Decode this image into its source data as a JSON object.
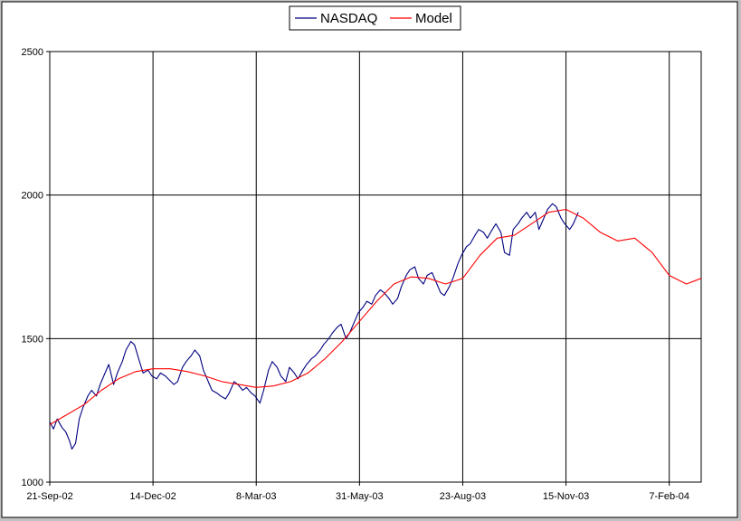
{
  "chart_data": {
    "type": "line",
    "title": "",
    "xlabel": "",
    "ylabel": "",
    "ylim": [
      1000,
      2500
    ],
    "yticks": [
      "1000",
      "1500",
      "2000",
      "2500"
    ],
    "xlim": [
      "2002-09-21",
      "2004-03-04"
    ],
    "xticks": [
      {
        "date": "2002-09-21",
        "label": "21-Sep-02"
      },
      {
        "date": "2002-12-14",
        "label": "14-Dec-02"
      },
      {
        "date": "2003-03-08",
        "label": "8-Mar-03"
      },
      {
        "date": "2003-05-31",
        "label": "31-May-03"
      },
      {
        "date": "2003-08-23",
        "label": "23-Aug-03"
      },
      {
        "date": "2003-11-15",
        "label": "15-Nov-03"
      },
      {
        "date": "2004-02-07",
        "label": "7-Feb-04"
      }
    ],
    "grid": true,
    "legend": "top-center",
    "series": [
      {
        "name": "NASDAQ",
        "color": "#000080",
        "points": [
          [
            "2002-09-21",
            1210
          ],
          [
            "2002-09-24",
            1185
          ],
          [
            "2002-09-27",
            1220
          ],
          [
            "2002-10-01",
            1190
          ],
          [
            "2002-10-04",
            1175
          ],
          [
            "2002-10-07",
            1145
          ],
          [
            "2002-10-09",
            1115
          ],
          [
            "2002-10-12",
            1135
          ],
          [
            "2002-10-15",
            1220
          ],
          [
            "2002-10-18",
            1260
          ],
          [
            "2002-10-22",
            1300
          ],
          [
            "2002-10-25",
            1320
          ],
          [
            "2002-10-29",
            1300
          ],
          [
            "2002-11-01",
            1340
          ],
          [
            "2002-11-05",
            1380
          ],
          [
            "2002-11-08",
            1410
          ],
          [
            "2002-11-12",
            1340
          ],
          [
            "2002-11-15",
            1380
          ],
          [
            "2002-11-19",
            1420
          ],
          [
            "2002-11-22",
            1460
          ],
          [
            "2002-11-26",
            1490
          ],
          [
            "2002-11-29",
            1478
          ],
          [
            "2002-12-03",
            1420
          ],
          [
            "2002-12-06",
            1380
          ],
          [
            "2002-12-10",
            1390
          ],
          [
            "2002-12-13",
            1370
          ],
          [
            "2002-12-17",
            1360
          ],
          [
            "2002-12-20",
            1380
          ],
          [
            "2002-12-24",
            1370
          ],
          [
            "2002-12-31",
            1340
          ],
          [
            "2003-01-03",
            1350
          ],
          [
            "2003-01-07",
            1400
          ],
          [
            "2003-01-10",
            1420
          ],
          [
            "2003-01-14",
            1440
          ],
          [
            "2003-01-17",
            1460
          ],
          [
            "2003-01-21",
            1440
          ],
          [
            "2003-01-24",
            1390
          ],
          [
            "2003-01-28",
            1350
          ],
          [
            "2003-01-31",
            1320
          ],
          [
            "2003-02-04",
            1310
          ],
          [
            "2003-02-07",
            1300
          ],
          [
            "2003-02-11",
            1290
          ],
          [
            "2003-02-14",
            1310
          ],
          [
            "2003-02-18",
            1350
          ],
          [
            "2003-02-21",
            1340
          ],
          [
            "2003-02-25",
            1320
          ],
          [
            "2003-02-28",
            1330
          ],
          [
            "2003-03-04",
            1310
          ],
          [
            "2003-03-07",
            1300
          ],
          [
            "2003-03-11",
            1275
          ],
          [
            "2003-03-14",
            1320
          ],
          [
            "2003-03-18",
            1390
          ],
          [
            "2003-03-21",
            1420
          ],
          [
            "2003-03-25",
            1400
          ],
          [
            "2003-03-28",
            1370
          ],
          [
            "2003-04-01",
            1350
          ],
          [
            "2003-04-04",
            1400
          ],
          [
            "2003-04-08",
            1380
          ],
          [
            "2003-04-11",
            1360
          ],
          [
            "2003-04-15",
            1390
          ],
          [
            "2003-04-18",
            1410
          ],
          [
            "2003-04-22",
            1430
          ],
          [
            "2003-04-25",
            1440
          ],
          [
            "2003-04-29",
            1460
          ],
          [
            "2003-05-02",
            1480
          ],
          [
            "2003-05-06",
            1500
          ],
          [
            "2003-05-09",
            1520
          ],
          [
            "2003-05-13",
            1540
          ],
          [
            "2003-05-16",
            1550
          ],
          [
            "2003-05-20",
            1500
          ],
          [
            "2003-05-23",
            1520
          ],
          [
            "2003-05-27",
            1560
          ],
          [
            "2003-05-30",
            1590
          ],
          [
            "2003-06-03",
            1610
          ],
          [
            "2003-06-06",
            1630
          ],
          [
            "2003-06-10",
            1620
          ],
          [
            "2003-06-13",
            1650
          ],
          [
            "2003-06-17",
            1670
          ],
          [
            "2003-06-20",
            1660
          ],
          [
            "2003-06-24",
            1640
          ],
          [
            "2003-06-27",
            1620
          ],
          [
            "2003-07-01",
            1640
          ],
          [
            "2003-07-04",
            1680
          ],
          [
            "2003-07-08",
            1720
          ],
          [
            "2003-07-11",
            1740
          ],
          [
            "2003-07-15",
            1750
          ],
          [
            "2003-07-18",
            1710
          ],
          [
            "2003-07-22",
            1690
          ],
          [
            "2003-07-25",
            1720
          ],
          [
            "2003-07-29",
            1730
          ],
          [
            "2003-08-01",
            1700
          ],
          [
            "2003-08-05",
            1660
          ],
          [
            "2003-08-08",
            1650
          ],
          [
            "2003-08-12",
            1680
          ],
          [
            "2003-08-15",
            1710
          ],
          [
            "2003-08-19",
            1760
          ],
          [
            "2003-08-22",
            1790
          ],
          [
            "2003-08-26",
            1820
          ],
          [
            "2003-08-29",
            1830
          ],
          [
            "2003-09-02",
            1860
          ],
          [
            "2003-09-05",
            1880
          ],
          [
            "2003-09-09",
            1870
          ],
          [
            "2003-09-12",
            1850
          ],
          [
            "2003-09-16",
            1880
          ],
          [
            "2003-09-19",
            1900
          ],
          [
            "2003-09-23",
            1870
          ],
          [
            "2003-09-26",
            1800
          ],
          [
            "2003-09-30",
            1790
          ],
          [
            "2003-10-03",
            1880
          ],
          [
            "2003-10-07",
            1900
          ],
          [
            "2003-10-10",
            1920
          ],
          [
            "2003-10-14",
            1940
          ],
          [
            "2003-10-17",
            1920
          ],
          [
            "2003-10-21",
            1940
          ],
          [
            "2003-10-24",
            1880
          ],
          [
            "2003-10-28",
            1920
          ],
          [
            "2003-10-31",
            1950
          ],
          [
            "2003-11-04",
            1970
          ],
          [
            "2003-11-07",
            1960
          ],
          [
            "2003-11-11",
            1920
          ],
          [
            "2003-11-14",
            1900
          ],
          [
            "2003-11-18",
            1880
          ],
          [
            "2003-11-21",
            1900
          ],
          [
            "2003-11-25",
            1940
          ]
        ]
      },
      {
        "name": "Model",
        "color": "#ff0000",
        "points": [
          [
            "2002-09-21",
            1200
          ],
          [
            "2002-10-05",
            1235
          ],
          [
            "2002-10-19",
            1270
          ],
          [
            "2002-11-02",
            1320
          ],
          [
            "2002-11-16",
            1360
          ],
          [
            "2002-11-30",
            1385
          ],
          [
            "2002-12-14",
            1395
          ],
          [
            "2002-12-28",
            1395
          ],
          [
            "2003-01-11",
            1385
          ],
          [
            "2003-01-25",
            1370
          ],
          [
            "2003-02-08",
            1350
          ],
          [
            "2003-02-22",
            1340
          ],
          [
            "2003-03-08",
            1330
          ],
          [
            "2003-03-22",
            1335
          ],
          [
            "2003-04-05",
            1350
          ],
          [
            "2003-04-19",
            1380
          ],
          [
            "2003-05-03",
            1430
          ],
          [
            "2003-05-17",
            1490
          ],
          [
            "2003-05-31",
            1560
          ],
          [
            "2003-06-14",
            1630
          ],
          [
            "2003-06-28",
            1690
          ],
          [
            "2003-07-12",
            1715
          ],
          [
            "2003-07-26",
            1710
          ],
          [
            "2003-08-09",
            1690
          ],
          [
            "2003-08-23",
            1710
          ],
          [
            "2003-09-06",
            1790
          ],
          [
            "2003-09-20",
            1850
          ],
          [
            "2003-10-04",
            1860
          ],
          [
            "2003-10-18",
            1900
          ],
          [
            "2003-11-01",
            1940
          ],
          [
            "2003-11-15",
            1950
          ],
          [
            "2003-11-29",
            1920
          ],
          [
            "2003-12-13",
            1870
          ],
          [
            "2003-12-27",
            1840
          ],
          [
            "2004-01-10",
            1850
          ],
          [
            "2004-01-24",
            1800
          ],
          [
            "2004-02-07",
            1720
          ],
          [
            "2004-02-21",
            1690
          ],
          [
            "2004-03-04",
            1710
          ]
        ]
      }
    ]
  }
}
